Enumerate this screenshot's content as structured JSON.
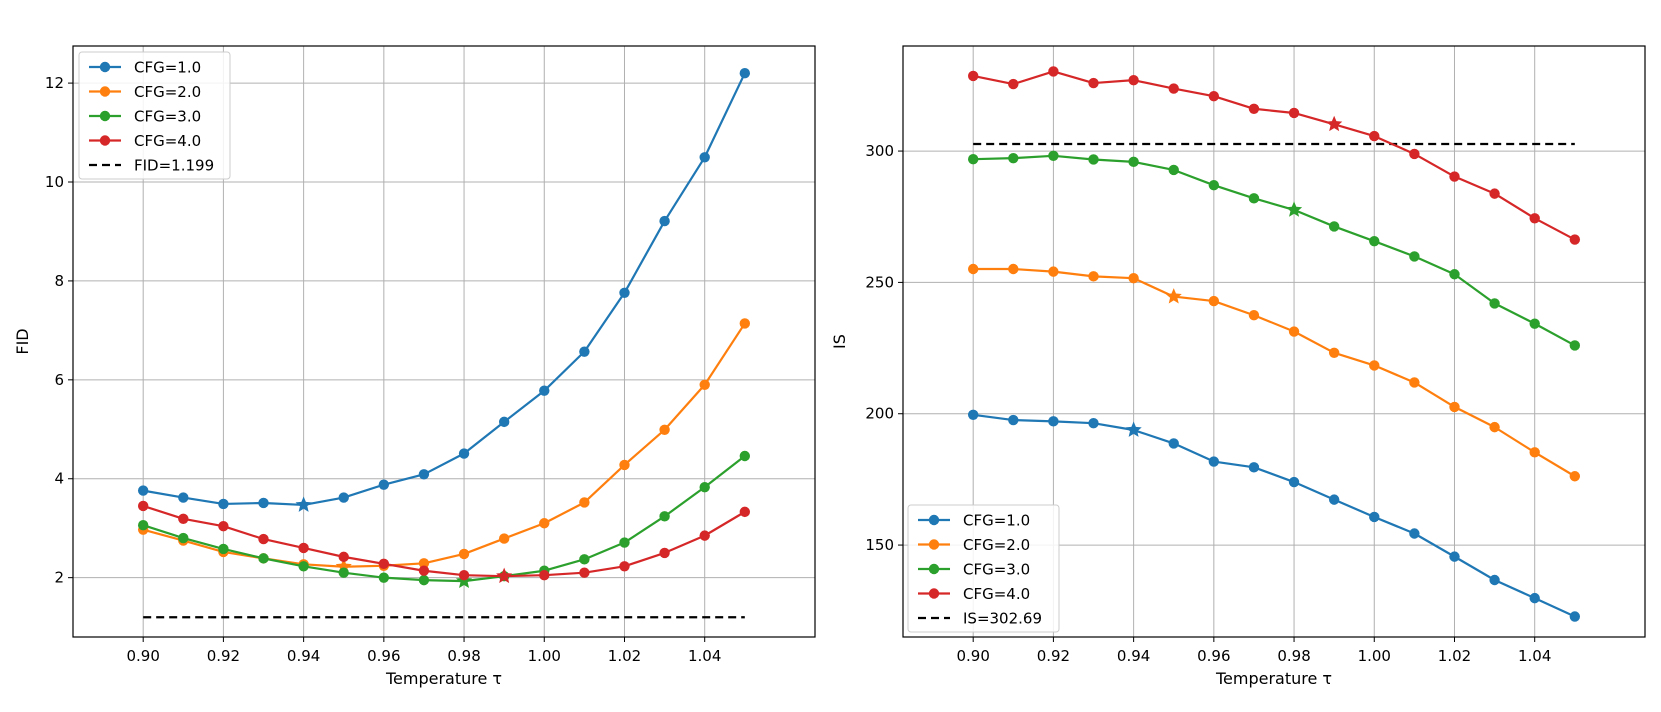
{
  "chart_data": [
    {
      "type": "line",
      "title": "",
      "xlabel": "Temperature τ",
      "ylabel": "FID",
      "xlim": [
        0.8825,
        1.0675
      ],
      "ylim": [
        0.8,
        12.75
      ],
      "xticks": [
        0.9,
        0.92,
        0.94,
        0.96,
        0.98,
        1.0,
        1.02,
        1.04
      ],
      "xtick_labels": [
        "0.90",
        "0.92",
        "0.94",
        "0.96",
        "0.98",
        "1.00",
        "1.02",
        "1.04"
      ],
      "yticks": [
        2,
        4,
        6,
        8,
        10,
        12
      ],
      "ytick_labels": [
        "2",
        "4",
        "6",
        "8",
        "10",
        "12"
      ],
      "grid": true,
      "legend_position": "top-left",
      "x": [
        0.9,
        0.91,
        0.92,
        0.93,
        0.94,
        0.95,
        0.96,
        0.97,
        0.98,
        0.99,
        1.0,
        1.01,
        1.02,
        1.03,
        1.04,
        1.05
      ],
      "series": [
        {
          "name": "CFG=1.0",
          "color": "#1f77b4",
          "star_x": 0.94,
          "values": [
            3.76,
            3.62,
            3.49,
            3.51,
            3.47,
            3.62,
            3.88,
            4.09,
            4.51,
            5.15,
            5.78,
            6.57,
            7.76,
            9.21,
            10.5,
            12.2
          ]
        },
        {
          "name": "CFG=2.0",
          "color": "#ff7f0e",
          "star_x": 0.95,
          "values": [
            2.97,
            2.75,
            2.52,
            2.39,
            2.27,
            2.22,
            2.24,
            2.29,
            2.48,
            2.79,
            3.1,
            3.52,
            4.28,
            4.99,
            5.9,
            7.14
          ]
        },
        {
          "name": "CFG=3.0",
          "color": "#2ca02c",
          "star_x": 0.98,
          "values": [
            3.06,
            2.8,
            2.58,
            2.39,
            2.23,
            2.1,
            2.0,
            1.95,
            1.93,
            2.03,
            2.14,
            2.37,
            2.71,
            3.24,
            3.83,
            4.46
          ]
        },
        {
          "name": "CFG=4.0",
          "color": "#d62728",
          "star_x": 0.99,
          "values": [
            3.45,
            3.19,
            3.04,
            2.78,
            2.6,
            2.42,
            2.28,
            2.14,
            2.05,
            2.03,
            2.05,
            2.1,
            2.23,
            2.5,
            2.85,
            3.33
          ]
        }
      ],
      "reference_line": {
        "name": "FID=1.199",
        "value": 1.199,
        "x_range": [
          0.9,
          1.05
        ],
        "color": "#000000",
        "style": "dashed"
      }
    },
    {
      "type": "line",
      "title": "",
      "xlabel": "Temperature τ",
      "ylabel": "IS",
      "xlim": [
        0.8825,
        1.0675
      ],
      "ylim": [
        115,
        340
      ],
      "xticks": [
        0.9,
        0.92,
        0.94,
        0.96,
        0.98,
        1.0,
        1.02,
        1.04
      ],
      "xtick_labels": [
        "0.90",
        "0.92",
        "0.94",
        "0.96",
        "0.98",
        "1.00",
        "1.02",
        "1.04"
      ],
      "yticks": [
        150,
        200,
        250,
        300
      ],
      "ytick_labels": [
        "150",
        "200",
        "250",
        "300"
      ],
      "grid": true,
      "legend_position": "bottom-left",
      "x": [
        0.9,
        0.91,
        0.92,
        0.93,
        0.94,
        0.95,
        0.96,
        0.97,
        0.98,
        0.99,
        1.0,
        1.01,
        1.02,
        1.03,
        1.04,
        1.05
      ],
      "series": [
        {
          "name": "CFG=1.0",
          "color": "#1f77b4",
          "star_x": 0.94,
          "values": [
            199.6,
            197.6,
            197.1,
            196.4,
            193.8,
            188.7,
            181.8,
            179.6,
            174.0,
            167.3,
            160.7,
            154.4,
            145.6,
            136.7,
            129.8,
            122.8
          ]
        },
        {
          "name": "CFG=2.0",
          "color": "#ff7f0e",
          "star_x": 0.95,
          "values": [
            255.1,
            255.1,
            254.1,
            252.3,
            251.6,
            244.6,
            242.9,
            237.5,
            231.3,
            223.2,
            218.4,
            211.9,
            202.6,
            194.9,
            185.3,
            176.2
          ]
        },
        {
          "name": "CFG=3.0",
          "color": "#2ca02c",
          "star_x": 0.98,
          "values": [
            296.9,
            297.3,
            298.2,
            296.8,
            295.9,
            292.8,
            287.0,
            282.0,
            277.6,
            271.3,
            265.7,
            259.9,
            253.1,
            242.0,
            234.3,
            226.0
          ]
        },
        {
          "name": "CFG=4.0",
          "color": "#d62728",
          "star_x": 0.99,
          "values": [
            328.6,
            325.5,
            330.3,
            325.9,
            327.0,
            323.8,
            320.9,
            316.1,
            314.5,
            310.2,
            305.7,
            298.9,
            290.3,
            283.8,
            274.4,
            266.3
          ]
        }
      ],
      "reference_line": {
        "name": "IS=302.69",
        "value": 302.69,
        "x_range": [
          0.9,
          1.05
        ],
        "color": "#000000",
        "style": "dashed"
      }
    }
  ]
}
